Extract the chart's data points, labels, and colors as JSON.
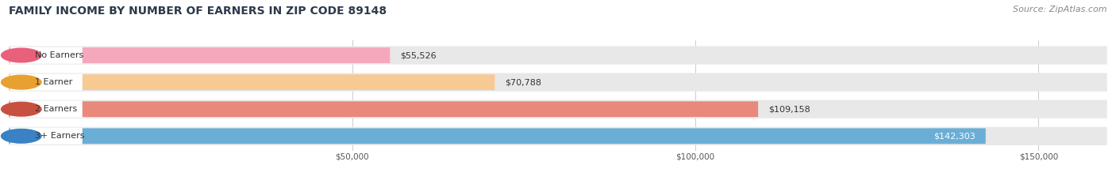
{
  "title": "FAMILY INCOME BY NUMBER OF EARNERS IN ZIP CODE 89148",
  "source": "Source: ZipAtlas.com",
  "categories": [
    "No Earners",
    "1 Earner",
    "2 Earners",
    "3+ Earners"
  ],
  "values": [
    55526,
    70788,
    109158,
    142303
  ],
  "value_labels": [
    "$55,526",
    "$70,788",
    "$109,158",
    "$142,303"
  ],
  "bar_colors": [
    "#f5a8bc",
    "#f7ca94",
    "#e8897c",
    "#6aaed6"
  ],
  "dot_colors": [
    "#e8607a",
    "#e8a030",
    "#c85040",
    "#3a82c4"
  ],
  "x_ticks": [
    50000,
    100000,
    150000
  ],
  "x_tick_labels": [
    "$50,000",
    "$100,000",
    "$150,000"
  ],
  "xlim_max": 160000,
  "bar_bg_color": "#e8e8e8",
  "title_color": "#2d3a4a",
  "source_color": "#888888",
  "title_fontsize": 10,
  "source_fontsize": 8,
  "label_fontsize": 8,
  "value_fontsize": 8
}
